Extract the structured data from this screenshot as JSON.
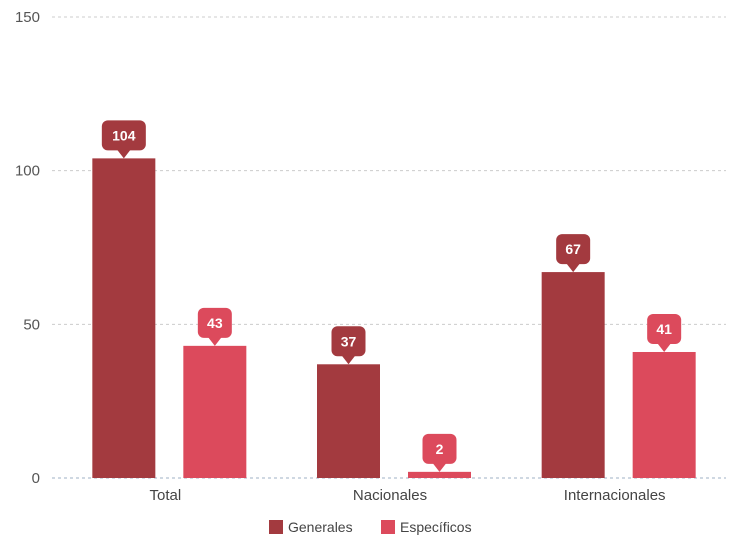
{
  "chart_data": {
    "type": "bar",
    "categories": [
      "Total",
      "Nacionales",
      "Internacionales"
    ],
    "series": [
      {
        "name": "Generales",
        "values": [
          104,
          37,
          67
        ],
        "color": "#a33a3f"
      },
      {
        "name": "Específicos",
        "values": [
          43,
          2,
          41
        ],
        "color": "#dc4a5c"
      }
    ],
    "ylim": [
      0,
      150
    ],
    "yticks": [
      0,
      50,
      100,
      150
    ],
    "grid": true,
    "legend_position": "bottom-center"
  }
}
